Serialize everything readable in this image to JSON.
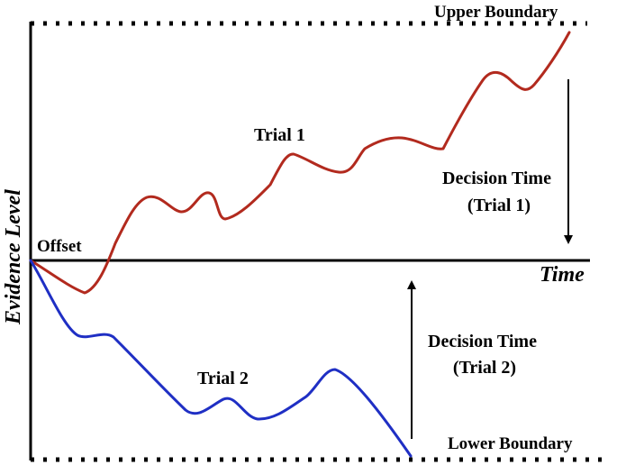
{
  "labels": {
    "upper_boundary": "Upper Boundary",
    "lower_boundary": "Lower Boundary",
    "offset": "Offset",
    "time_axis": "Time",
    "y_axis": "Evidence Level",
    "trial1": "Trial 1",
    "trial2": "Trial 2",
    "decision_time_1_line1": "Decision Time",
    "decision_time_1_line2": "(Trial 1)",
    "decision_time_2_line1": "Decision Time",
    "decision_time_2_line2": "(Trial 2)"
  },
  "colors": {
    "trial1": "#b22a1e",
    "trial2": "#1f2fc4",
    "axes": "#000000"
  }
}
